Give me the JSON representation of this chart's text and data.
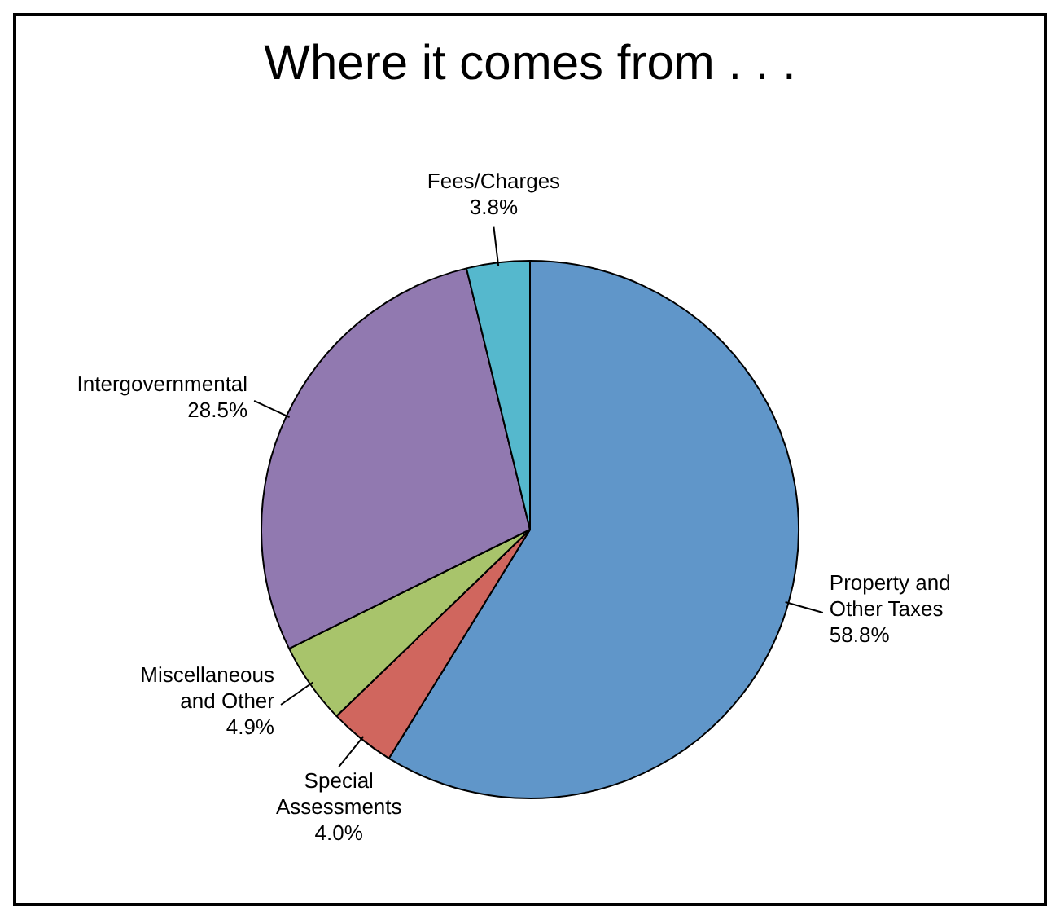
{
  "chart_data": {
    "type": "pie",
    "title": "Where it comes from . . .",
    "categories": [
      "Property and Other Taxes",
      "Special Assessments",
      "Miscellaneous and Other",
      "Intergovernmental",
      "Fees/Charges"
    ],
    "values": [
      58.8,
      4.0,
      4.9,
      28.5,
      3.8
    ],
    "value_labels": [
      "58.8%",
      "4.0%",
      "4.9%",
      "28.5%",
      "3.8%"
    ],
    "colors": [
      "#6096c9",
      "#d0665e",
      "#a8c46b",
      "#9179b0",
      "#55b8cd"
    ],
    "legend": false
  }
}
